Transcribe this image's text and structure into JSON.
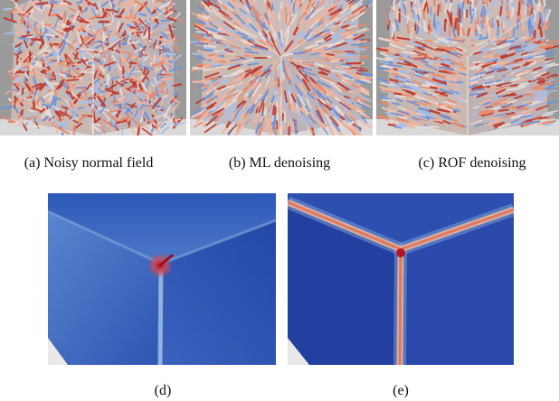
{
  "figure": {
    "panels": [
      {
        "id": "a",
        "caption": "(a)  Noisy normal field",
        "content": "cube corner with noisy normal vector glyphs"
      },
      {
        "id": "b",
        "caption": "(b)  ML denoising",
        "content": "cube corner with denoised normal vector glyphs"
      },
      {
        "id": "c",
        "caption": "(c)  ROF denoising",
        "content": "cube corner with ROF-denoised normal vector glyphs"
      },
      {
        "id": "d",
        "caption": "(d)",
        "content": "smoothed cube corner colored by error"
      },
      {
        "id": "e",
        "caption": "(e)",
        "content": "cube corner with highlighted sharp edges"
      }
    ]
  },
  "colors": {
    "background": "#ffffff",
    "mesh_gray": "#8c8c8c",
    "glyph_red": "#c0392b",
    "glyph_orange": "#e9896a",
    "glyph_blue": "#6f93d8",
    "glyph_light": "#e6dcd6",
    "surface_blue": "#2f4fae",
    "surface_deep_blue": "#1f3a9e",
    "edge_highlight": "#e07a5f"
  }
}
